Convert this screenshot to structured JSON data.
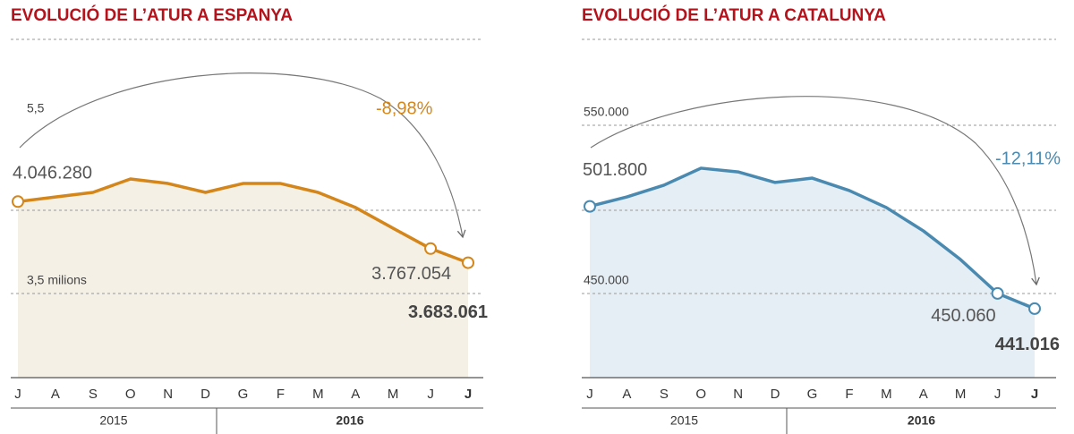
{
  "chart_data": [
    {
      "type": "line",
      "title": "EVOLUCIÓ DE L’ATUR A ESPANYA",
      "categories": [
        "J",
        "A",
        "S",
        "O",
        "N",
        "D",
        "G",
        "F",
        "M",
        "A",
        "M",
        "J",
        "J"
      ],
      "year_labels": [
        "2015",
        "2016"
      ],
      "series": [
        {
          "name": null,
          "color": "#d4861a",
          "fill": "#f4f0e6",
          "values": [
            4046280,
            4074000,
            4101000,
            4181000,
            4154000,
            4101000,
            4154000,
            4154000,
            4101000,
            4011000,
            3888000,
            3767054,
            3683061
          ],
          "value_labels": [
            "4.046.280",
            null,
            null,
            null,
            null,
            null,
            null,
            null,
            null,
            null,
            null,
            "3.767.054",
            "3.683.061"
          ]
        }
      ],
      "ylim": [
        3000000,
        5000000
      ],
      "yticks": [
        {
          "value": 3500000,
          "label": "3,5 milions"
        }
      ],
      "axis_note": "5,5",
      "annotation": "-8,98%"
    },
    {
      "type": "line",
      "title": "EVOLUCIÓ DE L’ATUR A CATALUNYA",
      "categories": [
        "J",
        "A",
        "S",
        "O",
        "N",
        "D",
        "G",
        "F",
        "M",
        "A",
        "M",
        "J",
        "J"
      ],
      "year_labels": [
        "2015",
        "2016"
      ],
      "series": [
        {
          "name": null,
          "color": "#4a8ab0",
          "fill": "#e5eef5",
          "values": [
            501800,
            507400,
            514400,
            524500,
            522300,
            516000,
            518600,
            511200,
            501100,
            487200,
            470200,
            450060,
            441016
          ],
          "value_labels": [
            "501.800",
            null,
            null,
            null,
            null,
            null,
            null,
            null,
            null,
            null,
            null,
            "450.060",
            "441.016"
          ]
        }
      ],
      "ylim": [
        400000,
        600000
      ],
      "yticks": [
        {
          "value": 450000,
          "label": "450.000"
        },
        {
          "value": 550000,
          "label": "550.000"
        }
      ],
      "annotation": "-12,11%"
    }
  ]
}
